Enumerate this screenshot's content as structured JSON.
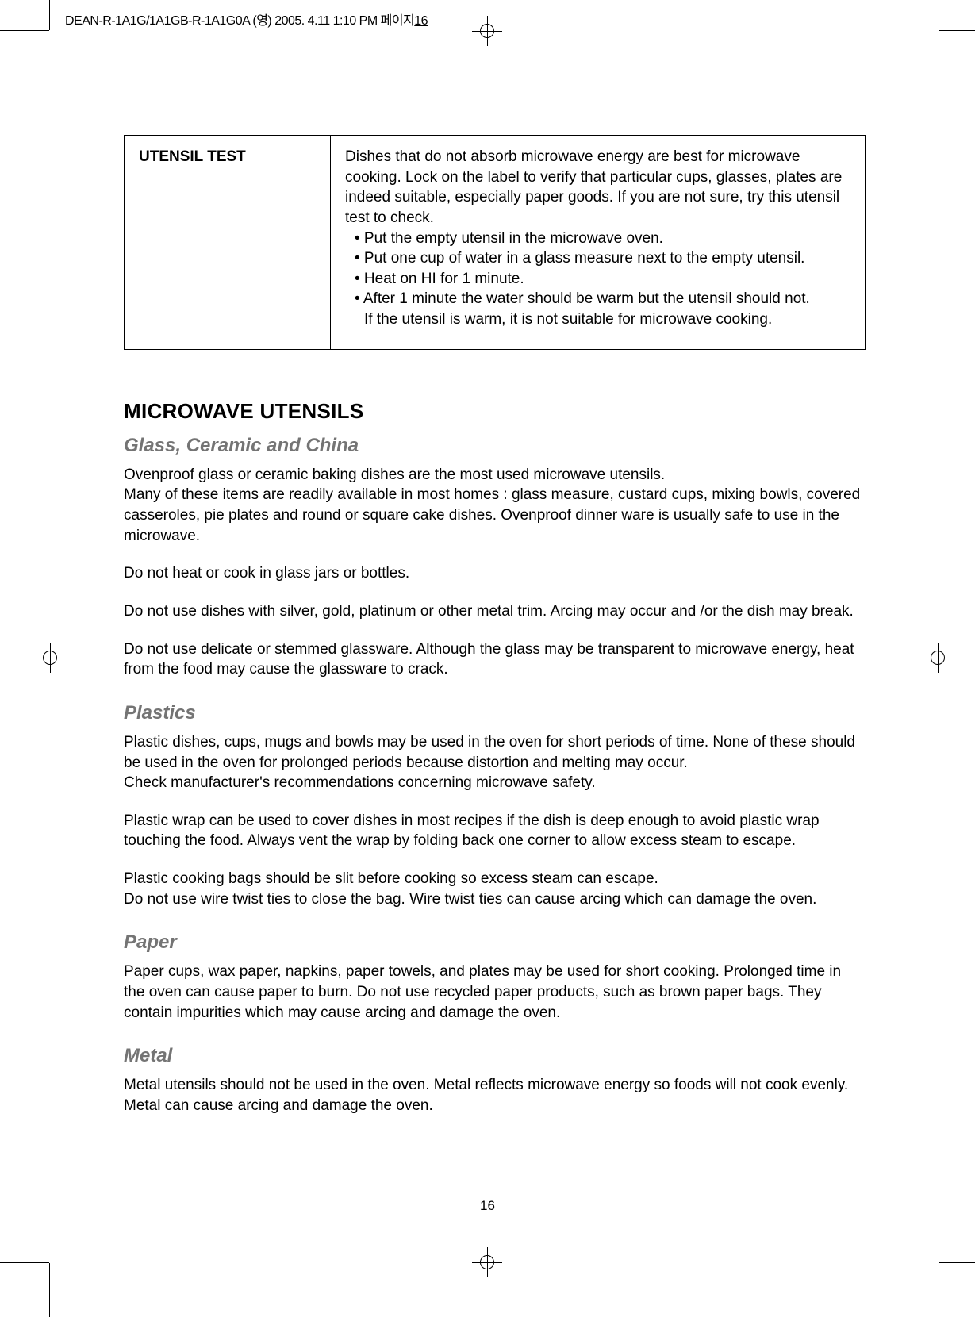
{
  "header": {
    "imprint": "DEAN-R-1A1G/1A1GB-R-1A1G0A (영)  2005. 4.11 1:10 PM  페이지",
    "page_in_imprint": "16"
  },
  "utensil_test": {
    "label": "UTENSIL TEST",
    "intro": "Dishes that do not absorb microwave energy are best for microwave cooking. Lock on the label to verify that particular cups, glasses, plates are indeed suitable, especially paper goods. If you are not sure, try this utensil test to check.",
    "b1": "• Put the empty utensil in the microwave oven.",
    "b2": "• Put one cup of water in a glass measure next to the empty utensil.",
    "b3": "• Heat on HI for 1 minute.",
    "b4": "• After 1 minute the water should be warm but the utensil should not.",
    "b4b": "If the utensil is warm, it is not suitable for microwave cooking."
  },
  "main_heading": "MICROWAVE UTENSILS",
  "glass": {
    "heading": "Glass, Ceramic and China",
    "p1": "Ovenproof glass or ceramic baking dishes are the most used microwave utensils.",
    "p2": "Many of these items are readily available in most homes : glass measure, custard cups, mixing bowls, covered casseroles, pie plates and round or square cake dishes. Ovenproof dinner ware is usually safe to use in the microwave.",
    "p3": "Do not heat or cook in glass jars or bottles.",
    "p4": "Do not use dishes with silver, gold, platinum or other metal trim. Arcing may occur and /or the dish may break.",
    "p5": "Do not use delicate or stemmed glassware. Although the glass may be transparent to microwave energy, heat from the food may cause the glassware to crack."
  },
  "plastics": {
    "heading": "Plastics",
    "p1": "Plastic dishes, cups, mugs and bowls may be used in the oven for short periods of time. None of these should be used in the oven for prolonged periods because distortion and melting may occur.",
    "p2": "Check manufacturer's recommendations concerning microwave safety.",
    "p3": "Plastic wrap can be used to cover dishes in most recipes if the dish is deep enough to avoid plastic wrap touching the food. Always vent the wrap by folding back one corner to allow excess steam to escape.",
    "p4": "Plastic cooking bags should be slit before cooking so excess steam can escape.",
    "p5": "Do not use wire twist ties to close the bag. Wire twist ties can cause arcing which can damage the oven."
  },
  "paper": {
    "heading": "Paper",
    "p1": "Paper cups, wax paper, napkins, paper towels, and plates may be used for short cooking. Prolonged time in the oven can cause paper to burn. Do not use recycled paper products, such as brown paper bags. They contain impurities which may cause arcing and damage the oven."
  },
  "metal": {
    "heading": "Metal",
    "p1": "Metal utensils should not be used in the oven. Metal reflects microwave energy so foods will not cook evenly.",
    "p2": "Metal can cause arcing and damage the oven."
  },
  "page_number": "16",
  "colors": {
    "text": "#000000",
    "grey_heading": "#747474",
    "background": "#ffffff",
    "border": "#000000"
  },
  "fonts": {
    "body_size_pt": 14,
    "heading_size_pt": 20,
    "subheading_size_pt": 18
  }
}
